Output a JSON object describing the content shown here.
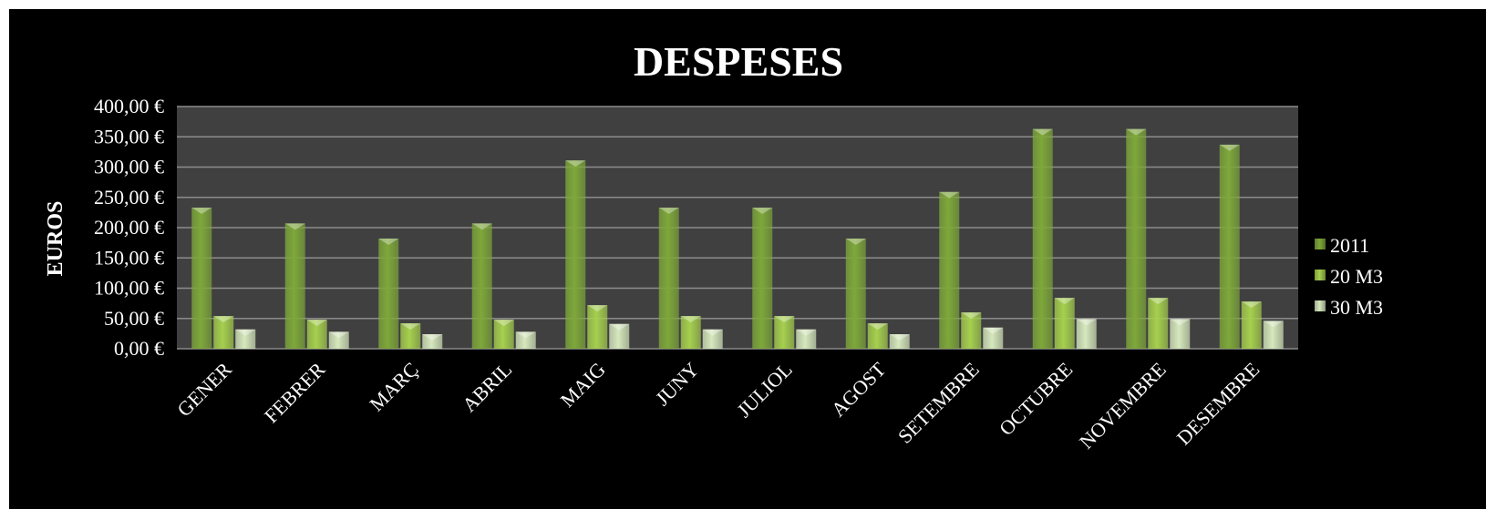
{
  "chart_data": {
    "type": "bar",
    "title": "DESPESES",
    "xlabel": "",
    "ylabel": "EUROS",
    "ylim": [
      0,
      400
    ],
    "yticks": [
      "0,00 €",
      "50,00 €",
      "100,00 €",
      "150,00 €",
      "200,00 €",
      "250,00 €",
      "300,00 €",
      "350,00 €",
      "400,00 €"
    ],
    "categories": [
      "GENER",
      "FEBRER",
      "MARÇ",
      "ABRIL",
      "MAIG",
      "JUNY",
      "JULIOL",
      "AGOST",
      "SETEMBRE",
      "OCTUBRE",
      "NOVEMBRE",
      "DESEMBRE"
    ],
    "series": [
      {
        "name": "2011",
        "color": "#7ea83a",
        "values": [
          233,
          207,
          182,
          207,
          311,
          233,
          233,
          182,
          259,
          363,
          363,
          337
        ]
      },
      {
        "name": "20 M3",
        "color": "#a6d04e",
        "values": [
          54,
          48,
          42,
          48,
          72,
          54,
          54,
          42,
          60,
          84,
          84,
          78
        ]
      },
      {
        "name": "30 M3",
        "color": "#d6e8bd",
        "values": [
          32,
          28,
          24,
          28,
          41,
          32,
          32,
          24,
          35,
          49,
          49,
          46
        ]
      }
    ],
    "grid": true,
    "legend_position": "right",
    "plot_background": "#404040"
  }
}
